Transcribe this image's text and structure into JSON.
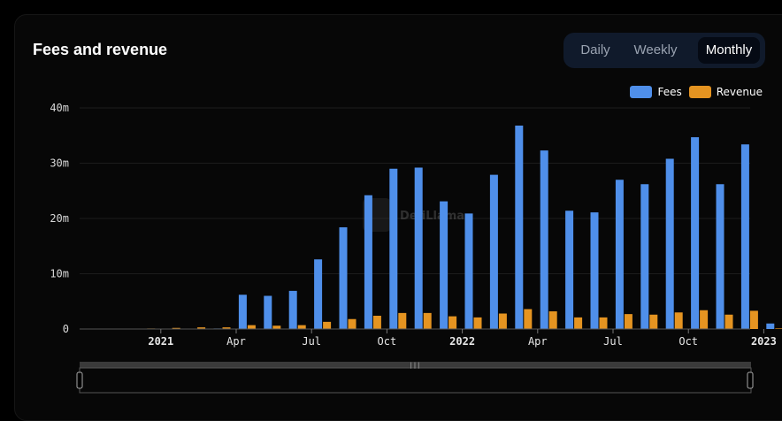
{
  "header": {
    "title": "Fees and revenue",
    "tabs": [
      {
        "label": "Daily",
        "active": false
      },
      {
        "label": "Weekly",
        "active": false
      },
      {
        "label": "Monthly",
        "active": true
      }
    ]
  },
  "watermark": "DefiLlama",
  "colors": {
    "fees": "#4f8fea",
    "revenue": "#e59421",
    "grid": "#1c1c1c",
    "axis": "#9a9a9a"
  },
  "chart_data": {
    "type": "bar",
    "categories": [
      "2020-11",
      "2020-12",
      "2021-01",
      "2021-02",
      "2021-03",
      "2021-04",
      "2021-05",
      "2021-06",
      "2021-07",
      "2021-08",
      "2021-09",
      "2021-10",
      "2021-11",
      "2021-12",
      "2022-01",
      "2022-02",
      "2022-03",
      "2022-04",
      "2022-05",
      "2022-06",
      "2022-07",
      "2022-08",
      "2022-09",
      "2022-10",
      "2022-11",
      "2022-12",
      "2023-01",
      "2023-02"
    ],
    "series": [
      {
        "name": "Fees",
        "values": [
          0,
          0,
          0,
          0,
          0.05,
          0.1,
          6.2,
          6.0,
          6.9,
          12.6,
          18.4,
          24.2,
          29.0,
          29.2,
          23.1,
          20.9,
          27.9,
          36.8,
          32.3,
          21.4,
          21.1,
          27.0,
          26.2,
          30.8,
          34.7,
          26.2,
          33.4,
          1.0
        ]
      },
      {
        "name": "Revenue",
        "values": [
          0,
          0,
          0.1,
          0.2,
          0.3,
          0.3,
          0.7,
          0.6,
          0.7,
          1.3,
          1.8,
          2.4,
          2.9,
          2.9,
          2.3,
          2.1,
          2.8,
          3.6,
          3.2,
          2.1,
          2.1,
          2.7,
          2.6,
          3.0,
          3.4,
          2.6,
          3.3,
          0.1
        ]
      }
    ],
    "xticks": [
      "2021",
      "Apr",
      "Jul",
      "Oct",
      "2022",
      "Apr",
      "Jul",
      "Oct",
      "2023"
    ],
    "xtick_categories": [
      "2021-01",
      "2021-04",
      "2021-07",
      "2021-10",
      "2022-01",
      "2022-04",
      "2022-07",
      "2022-10",
      "2023-01"
    ],
    "xtick_bold": [
      true,
      false,
      false,
      false,
      true,
      false,
      false,
      false,
      true
    ],
    "yticks": [
      "0",
      "10m",
      "20m",
      "30m",
      "40m"
    ],
    "ytick_values": [
      0,
      10,
      20,
      30,
      40
    ],
    "ylim": [
      0,
      40
    ],
    "unit": "millions",
    "grid": true,
    "legend": "top-right"
  }
}
